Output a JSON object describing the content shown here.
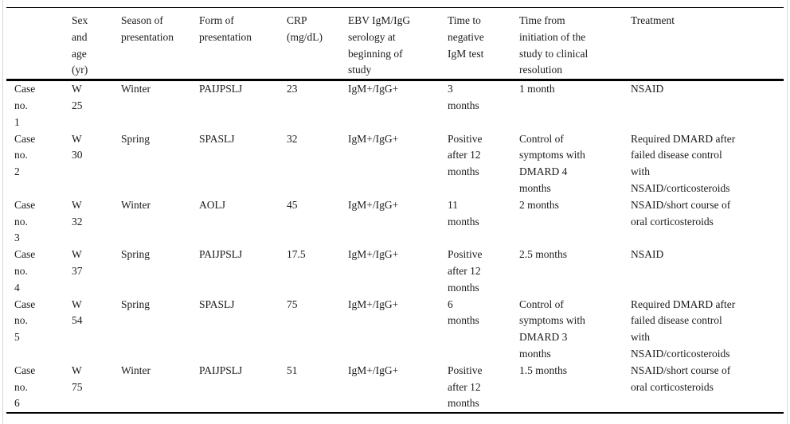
{
  "table": {
    "columns": [
      "",
      "Sex\nand\nage\n(yr)",
      "Season of\npresentation",
      "Form of\npresentation",
      "CRP\n(mg/dL)",
      "EBV IgM/IgG\nserology at\nbeginning of\nstudy",
      "Time to\nnegative\nIgM test",
      "Time from\ninitiation of the\nstudy to clinical\nresolution",
      "Treatment"
    ],
    "rows": [
      [
        "Case\nno.\n1",
        "W\n25",
        "Winter",
        "PAIJPSLJ",
        "23",
        "IgM+/IgG+",
        "3\nmonths",
        "1 month",
        "NSAID"
      ],
      [
        "Case\nno.\n2",
        "W\n30",
        "Spring",
        "SPASLJ",
        "32",
        "IgM+/IgG+",
        "Positive\nafter 12\nmonths",
        "Control of\nsymptoms with\nDMARD 4\nmonths",
        "Required DMARD after\nfailed disease control\nwith\nNSAID/corticosteroids"
      ],
      [
        "Case\nno.\n3",
        "W\n32",
        "Winter",
        "AOLJ",
        "45",
        "IgM+/IgG+",
        "11\nmonths",
        "2 months",
        "NSAID/short course of\noral corticosteroids"
      ],
      [
        "Case\nno.\n4",
        "W\n37",
        "Spring",
        "PAIJPSLJ",
        "17.5",
        "IgM+/IgG+",
        "Positive\nafter 12\nmonths",
        "2.5 months",
        "NSAID"
      ],
      [
        "Case\nno.\n5",
        "W\n54",
        "Spring",
        "SPASLJ",
        "75",
        "IgM+/IgG+",
        "6\nmonths",
        "Control of\nsymptoms with\nDMARD 3\nmonths",
        "Required DMARD after\nfailed disease control\nwith\nNSAID/corticosteroids"
      ],
      [
        "Case\nno.\n6",
        "W\n75",
        "Winter",
        "PAIJPSLJ",
        "51",
        "IgM+/IgG+",
        "Positive\nafter 12\nmonths",
        "1.5 months",
        "NSAID/short course of\noral corticosteroids"
      ]
    ]
  },
  "colors": {
    "text": "#1b1b1b",
    "rule": "#000000",
    "frame": "#d6d6d6",
    "background": "#ffffff"
  }
}
